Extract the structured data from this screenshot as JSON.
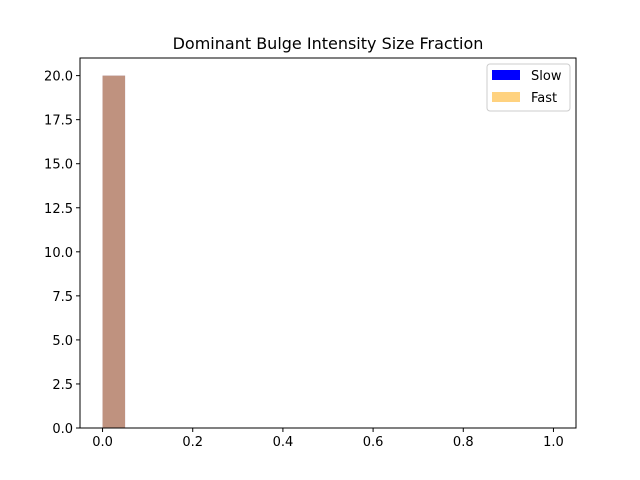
{
  "chart_data": {
    "type": "bar",
    "title": "Dominant Bulge Intensity Size Fraction",
    "xlabel": "",
    "ylabel": "",
    "xlim": [
      -0.05,
      1.05
    ],
    "ylim": [
      0,
      21
    ],
    "x_ticks": [
      "0.0",
      "0.2",
      "0.4",
      "0.6",
      "0.8",
      "1.0"
    ],
    "y_ticks": [
      "0.0",
      "2.5",
      "5.0",
      "7.5",
      "10.0",
      "12.5",
      "15.0",
      "17.5",
      "20.0"
    ],
    "bin_width": 0.05,
    "series": [
      {
        "name": "Slow",
        "color": "#0000ff",
        "opacity": 0.5,
        "bins": [
          {
            "x0": 0.0,
            "x1": 0.05,
            "count": 20
          }
        ]
      },
      {
        "name": "Fast",
        "color": "#ffa500",
        "opacity": 0.5,
        "bins": [
          {
            "x0": 0.0,
            "x1": 0.05,
            "count": 20
          }
        ]
      }
    ],
    "legend": {
      "position": "top-right",
      "items": [
        "Slow",
        "Fast"
      ]
    },
    "grid": false
  }
}
